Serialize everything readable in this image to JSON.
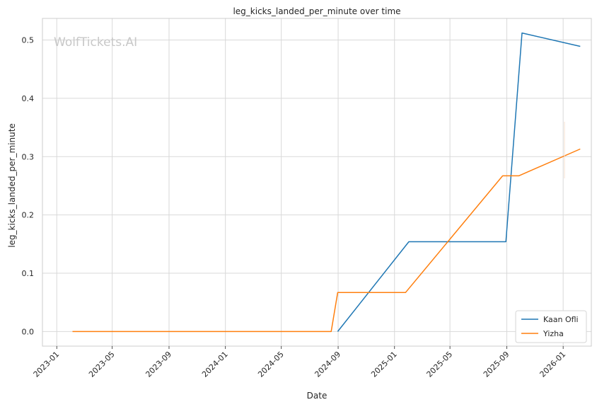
{
  "watermark": "WolfTickets.AI",
  "chart_data": {
    "type": "line",
    "title": "leg_kicks_landed_per_minute over time",
    "xlabel": "Date",
    "ylabel": "leg_kicks_landed_per_minute",
    "x_ticks": [
      "2023-01",
      "2023-05",
      "2023-09",
      "2024-01",
      "2024-05",
      "2024-09",
      "2025-01",
      "2025-05",
      "2025-09",
      "2026-01"
    ],
    "y_ticks": [
      "0.0",
      "0.1",
      "0.2",
      "0.3",
      "0.4",
      "0.5"
    ],
    "xlim": [
      "2022-12-01",
      "2026-03-03"
    ],
    "ylim": [
      -0.025,
      0.537
    ],
    "grid": true,
    "legend": "bottom-right",
    "series": [
      {
        "name": "Kaan Ofli",
        "color": "#1f77b4",
        "points": [
          {
            "x": "2024-08-31",
            "y": 0.0
          },
          {
            "x": "2025-02-01",
            "y": 0.154
          },
          {
            "x": "2025-08-30",
            "y": 0.154
          },
          {
            "x": "2025-10-04",
            "y": 0.512
          },
          {
            "x": "2026-02-07",
            "y": 0.489
          }
        ]
      },
      {
        "name": "Yizha",
        "color": "#ff7f0e",
        "points": [
          {
            "x": "2023-02-04",
            "y": 0.0
          },
          {
            "x": "2024-08-17",
            "y": 0.0
          },
          {
            "x": "2024-08-31",
            "y": 0.067
          },
          {
            "x": "2025-01-25",
            "y": 0.067
          },
          {
            "x": "2025-08-23",
            "y": 0.267
          },
          {
            "x": "2025-09-27",
            "y": 0.267
          },
          {
            "x": "2026-02-07",
            "y": 0.313
          }
        ]
      }
    ]
  }
}
